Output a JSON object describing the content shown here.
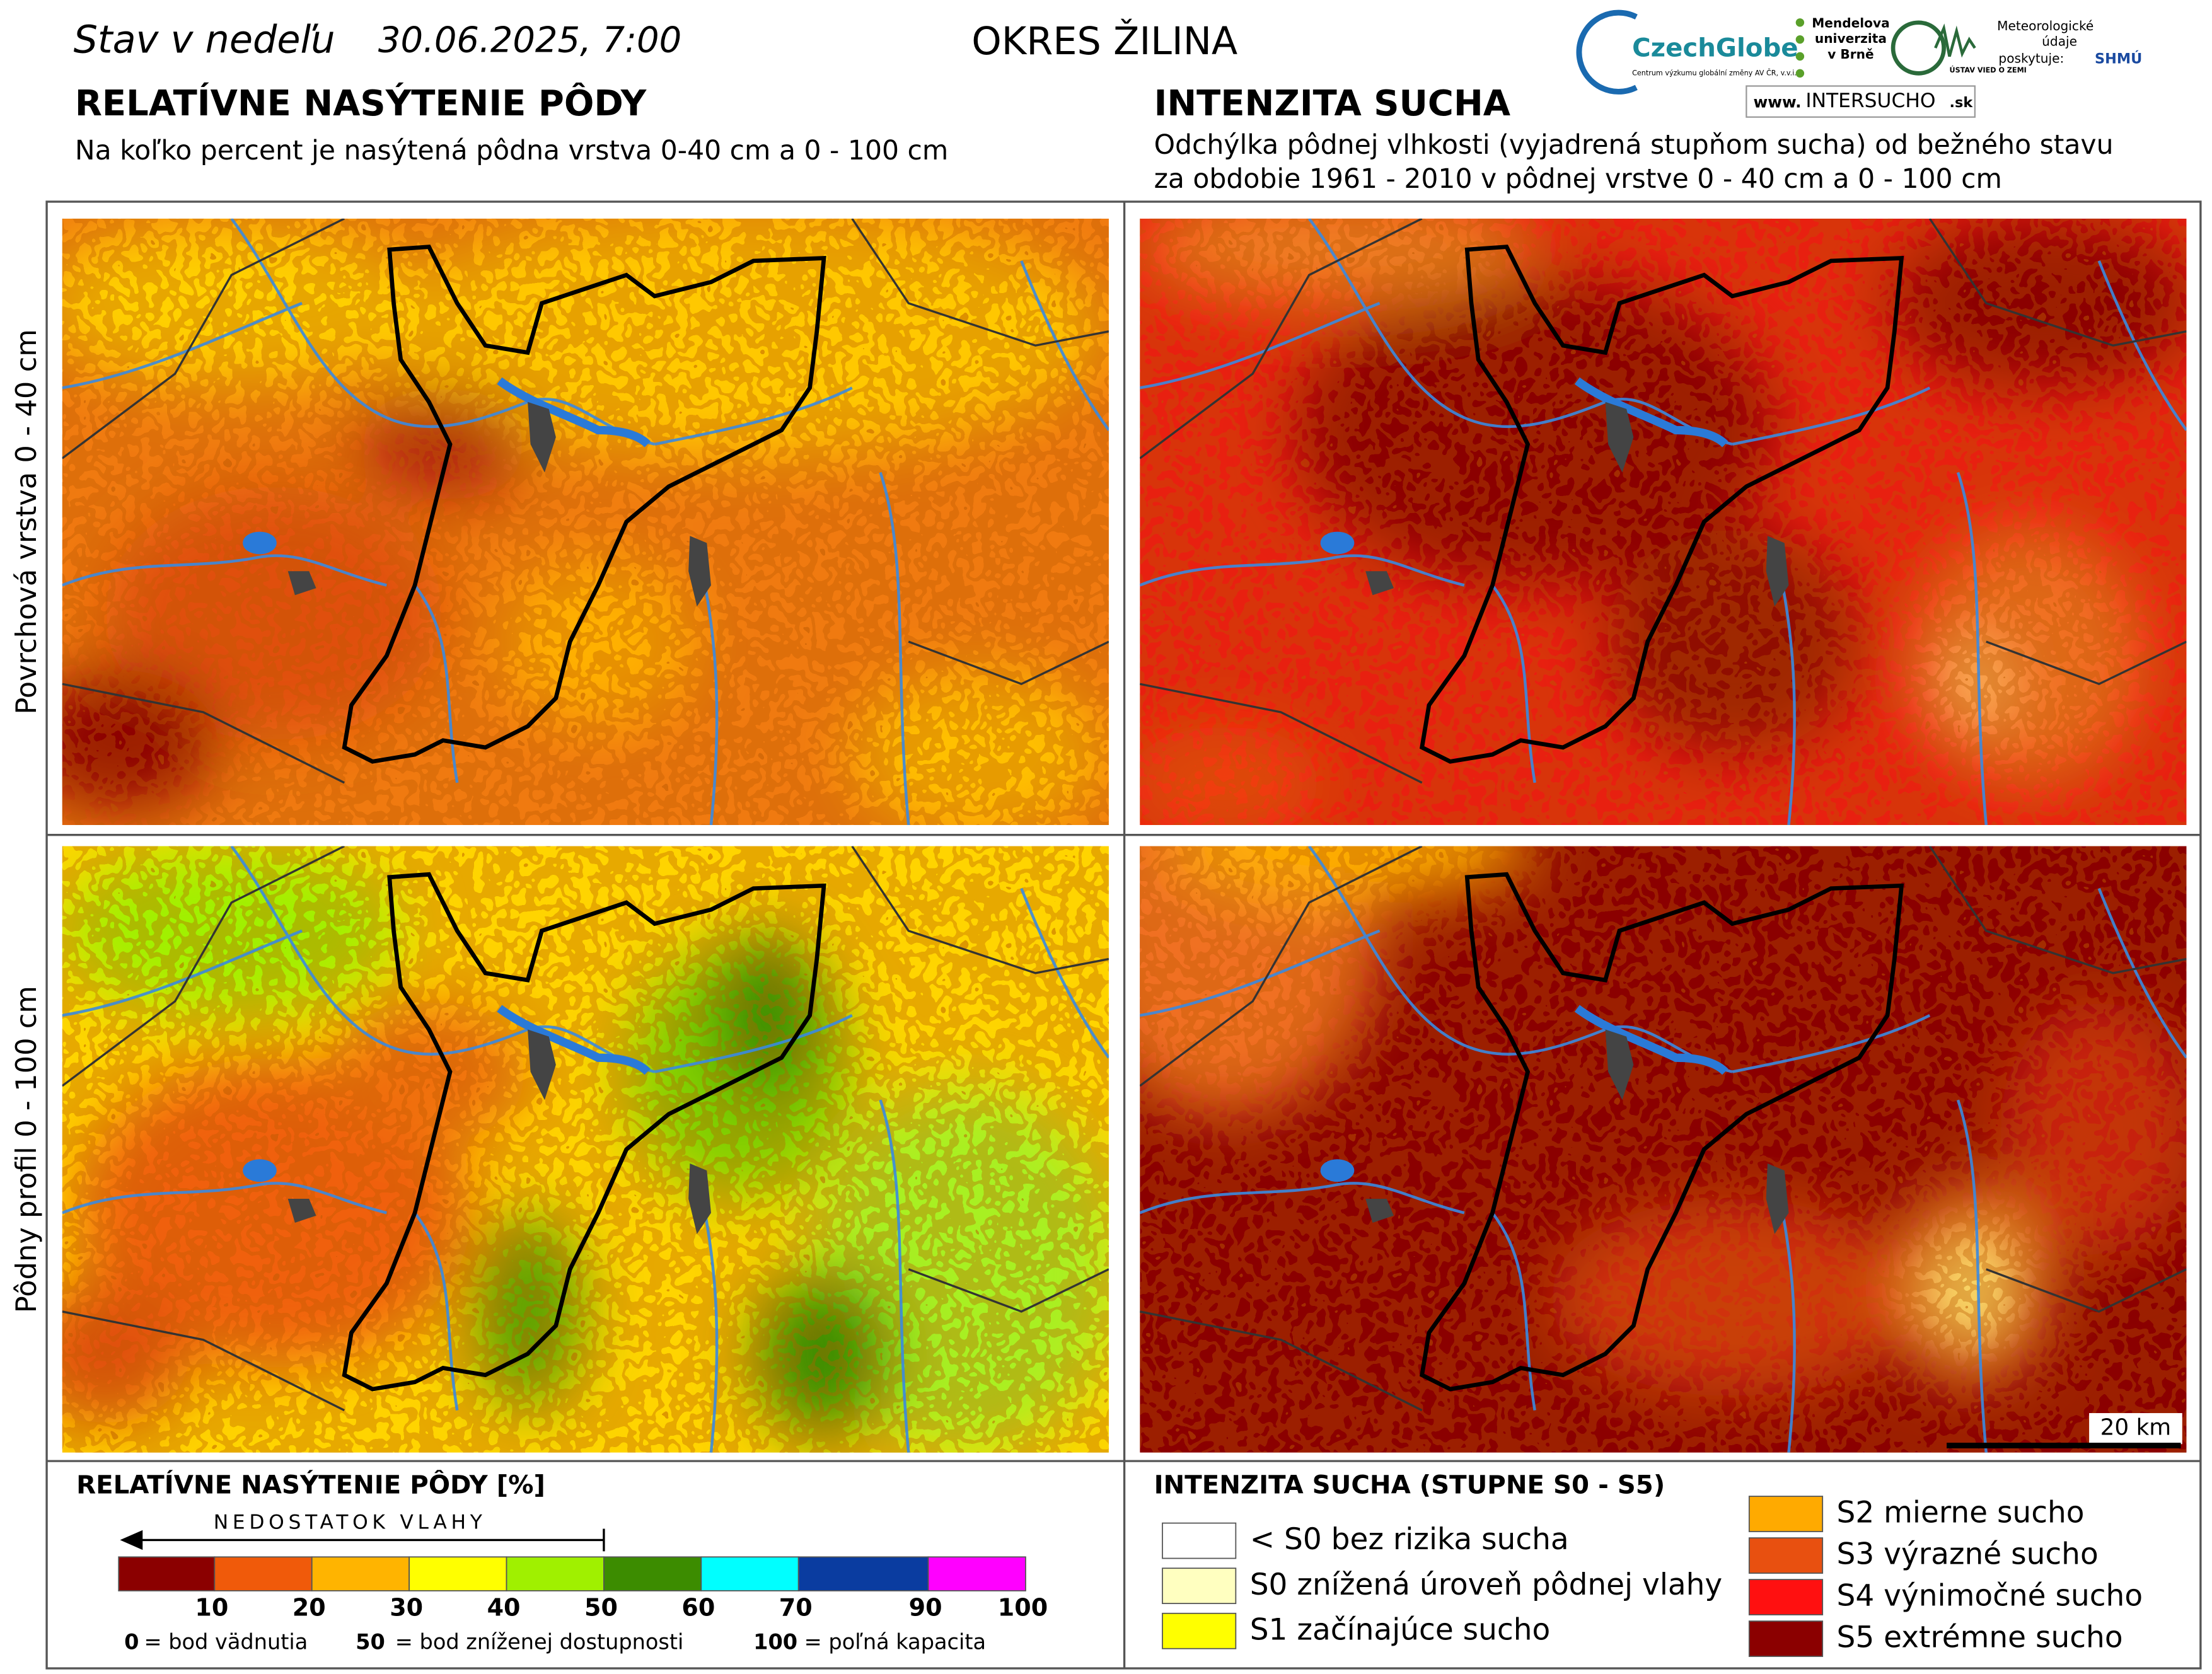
{
  "header": {
    "day_label": "Stav v nedeľu",
    "datetime": "30.06.2025, 7:00",
    "region": "OKRES ŽILINA"
  },
  "logos": {
    "czechglobe": "CzechGlobe",
    "czechglobe_sub": "Centrum výzkumu globální změny AV ČR, v.v.i.",
    "mendel": [
      "Mendelova",
      "univerzita",
      "v Brně"
    ],
    "uvz": "ÚSTAV VIED O ZEMI",
    "meteo": [
      "Meteorologické",
      "údaje",
      "poskytuje:"
    ],
    "shmu": "SHMÚ",
    "intersucho": {
      "prefix": "www.",
      "name": "INTERSUCHO",
      "suffix": ".sk"
    }
  },
  "left": {
    "title": "RELATÍVNE NASÝTENIE PÔDY",
    "subtitle": "Na koľko percent je nasýtená pôdna vrstva 0-40 cm a 0 - 100 cm"
  },
  "right": {
    "title": "INTENZITA SUCHA",
    "subtitle": [
      "Odchýlka pôdnej vlhkosti (vyjadrená stupňom sucha) od bežného stavu",
      "za obdobie 1961 - 2010 v pôdnej vrstve 0 - 40 cm a 0 - 100 cm"
    ]
  },
  "rows": [
    "Povrchová vrstva 0 - 40 cm",
    "Pôdny profil 0 - 100 cm"
  ],
  "scale_bar": "20 km",
  "legend_saturation": {
    "title": "RELATÍVNE NASÝTENIE PÔDY [%]",
    "arrow": "NEDOSTATOK VLAHY",
    "classes": [
      {
        "upper": 10,
        "color": "#8b0000"
      },
      {
        "upper": 20,
        "color": "#f05a0a"
      },
      {
        "upper": 30,
        "color": "#ffb400"
      },
      {
        "upper": 40,
        "color": "#ffff00"
      },
      {
        "upper": 50,
        "color": "#a0f000"
      },
      {
        "upper": 60,
        "color": "#3c8c00"
      },
      {
        "upper": 70,
        "color": "#00ffff"
      },
      {
        "upper": 90,
        "color": "#0a3ca0"
      },
      {
        "upper": 100,
        "color": "#ff00ff"
      }
    ],
    "notes": [
      {
        "value": 0,
        "text": "= bod vädnutia"
      },
      {
        "value": 50,
        "text": "= bod zníženej dostupnosti"
      },
      {
        "value": 100,
        "text": "= poľná kapacita"
      }
    ]
  },
  "legend_drought": {
    "title": "INTENZITA SUCHA (STUPNE S0 - S5)",
    "items": [
      {
        "label": "< S0 bez rizika sucha",
        "color": "#ffffff"
      },
      {
        "label": "S0 znížená úroveň pôdnej vlahy",
        "color": "#ffffc0"
      },
      {
        "label": "S1 začínajúce sucho",
        "color": "#ffff00"
      },
      {
        "label": "S2 mierne sucho",
        "color": "#ffaa00"
      },
      {
        "label": "S3 výrazné sucho",
        "color": "#e85010"
      },
      {
        "label": "S4 výnimočné sucho",
        "color": "#ff1010"
      },
      {
        "label": "S5 extrémne sucho",
        "color": "#8b0000"
      }
    ]
  }
}
